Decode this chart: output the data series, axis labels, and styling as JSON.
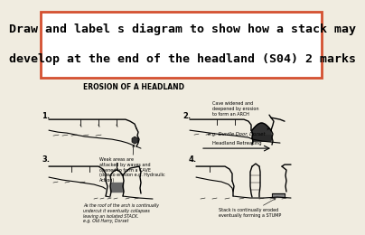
{
  "title_line1": "Draw and label s diagram to show how a stack may",
  "title_line2": "develop at the end of the headland (S04) 2 marks",
  "title_fontsize": 9.5,
  "title_border_color": "#d45030",
  "bg_color": "#f0ece0",
  "main_label": "EROSION OF A HEADLAND",
  "main_label_fontsize": 5.5,
  "diagram_labels": [
    "1.",
    "2.",
    "3.",
    "4."
  ],
  "label_fontsize": 6,
  "annotations": {
    "cave": "Weak areas are\nattacked by waves and\nopened to form a CAVE\n(due to erosion e.g. Hydraulic\nAction)",
    "arch_example": "e.g. Durdle Door, Dorset",
    "arch_label": "Cave widened and\ndeepened by erosion\nto form an ARCH",
    "headland": "Headland Retreating",
    "stack_label": "As the roof of the arch is continually\nundercut it eventually collapses\nleaving an isolated STACK.\ne.g. Old Harry, Dorset",
    "stump_label": "Stack is continually eroded\neventually forming a STUMP"
  },
  "anno_fontsize": 3.8,
  "title_bg": "#ffffff"
}
